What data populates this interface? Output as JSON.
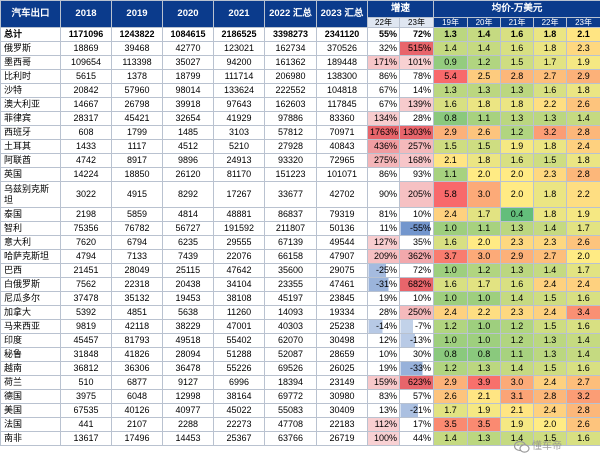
{
  "table": {
    "headers": {
      "country": "汽车出口",
      "y2018": "2018",
      "y2019": "2019",
      "y2020": "2020",
      "y2021": "2021",
      "ytd2022": "2022 汇总",
      "ytd2023": "2023 汇总",
      "growth": "增速",
      "avg_price": "均价-万美元"
    },
    "growth_subheaders": [
      "22年",
      "23年"
    ],
    "price_subheaders": [
      "19年",
      "20年",
      "21年",
      "22年",
      "23年"
    ],
    "rows": [
      {
        "country": "总计",
        "values": [
          "1171096",
          "1243822",
          "1084615",
          "2186525",
          "3398273",
          "2341120"
        ],
        "growth": [
          "55%",
          "72%"
        ],
        "price": [
          "1.3",
          "1.4",
          "1.6",
          "1.8",
          "2.1"
        ]
      },
      {
        "country": "俄罗斯",
        "values": [
          "18869",
          "39468",
          "42770",
          "123021",
          "162734",
          "370526"
        ],
        "growth": [
          "32%",
          "515%"
        ],
        "price": [
          "1.4",
          "1.4",
          "1.6",
          "1.8",
          "2.3"
        ]
      },
      {
        "country": "墨西哥",
        "values": [
          "109654",
          "113398",
          "35027",
          "94200",
          "161362",
          "189448"
        ],
        "growth": [
          "171%",
          "101%"
        ],
        "price": [
          "0.9",
          "1.2",
          "1.5",
          "1.7",
          "1.9"
        ]
      },
      {
        "country": "比利时",
        "values": [
          "5615",
          "1378",
          "18799",
          "111714",
          "206980",
          "138300"
        ],
        "growth": [
          "86%",
          "78%"
        ],
        "price": [
          "5.4",
          "2.5",
          "2.8",
          "2.7",
          "2.9"
        ]
      },
      {
        "country": "沙特",
        "values": [
          "20842",
          "57960",
          "98014",
          "133624",
          "222552",
          "104818"
        ],
        "growth": [
          "67%",
          "14%"
        ],
        "price": [
          "1.3",
          "1.3",
          "1.3",
          "1.6",
          "1.8"
        ]
      },
      {
        "country": "澳大利亚",
        "values": [
          "14667",
          "26798",
          "39918",
          "97643",
          "162603",
          "117845"
        ],
        "growth": [
          "67%",
          "139%"
        ],
        "price": [
          "1.6",
          "1.8",
          "1.8",
          "2.2",
          "2.6"
        ]
      },
      {
        "country": "菲律宾",
        "values": [
          "28317",
          "45421",
          "32654",
          "41929",
          "97886",
          "83360"
        ],
        "growth": [
          "134%",
          "28%"
        ],
        "price": [
          "0.8",
          "1.1",
          "1.3",
          "1.3",
          "1.4"
        ]
      },
      {
        "country": "西班牙",
        "values": [
          "608",
          "1799",
          "1485",
          "3103",
          "57812",
          "70971"
        ],
        "growth": [
          "1763%",
          "1303%"
        ],
        "price": [
          "2.9",
          "2.6",
          "1.2",
          "3.2",
          "2.8"
        ]
      },
      {
        "country": "土耳其",
        "values": [
          "1433",
          "1117",
          "4512",
          "5210",
          "27928",
          "40843"
        ],
        "growth": [
          "436%",
          "257%"
        ],
        "price": [
          "1.5",
          "1.5",
          "1.9",
          "1.8",
          "2.4"
        ]
      },
      {
        "country": "阿联酋",
        "values": [
          "4742",
          "8917",
          "9896",
          "24913",
          "93320",
          "72965"
        ],
        "growth": [
          "275%",
          "168%"
        ],
        "price": [
          "2.1",
          "1.8",
          "1.6",
          "1.5",
          "1.8"
        ]
      },
      {
        "country": "英国",
        "values": [
          "14224",
          "18850",
          "26120",
          "81170",
          "151223",
          "101071"
        ],
        "growth": [
          "86%",
          "93%"
        ],
        "price": [
          "1.1",
          "2.0",
          "2.0",
          "2.3",
          "2.8"
        ]
      },
      {
        "country": "乌兹别克斯坦",
        "values": [
          "3022",
          "4915",
          "8292",
          "17267",
          "33677",
          "42702"
        ],
        "growth": [
          "90%",
          "205%"
        ],
        "price": [
          "5.8",
          "3.0",
          "2.0",
          "1.8",
          "2.2"
        ],
        "tall": true
      },
      {
        "country": "泰国",
        "values": [
          "2198",
          "5859",
          "4814",
          "48881",
          "86837",
          "79319"
        ],
        "growth": [
          "81%",
          "10%"
        ],
        "price": [
          "2.4",
          "1.7",
          "0.4",
          "1.8",
          "1.9"
        ]
      },
      {
        "country": "智利",
        "values": [
          "75356",
          "76782",
          "56727",
          "191592",
          "211807",
          "50136"
        ],
        "growth": [
          "11%",
          "-55%"
        ],
        "price": [
          "1.0",
          "1.1",
          "1.3",
          "1.4",
          "1.7"
        ]
      },
      {
        "country": "意大利",
        "values": [
          "7620",
          "6794",
          "6235",
          "29555",
          "67139",
          "49544"
        ],
        "growth": [
          "127%",
          "35%"
        ],
        "price": [
          "1.6",
          "2.0",
          "2.3",
          "2.3",
          "2.6"
        ]
      },
      {
        "country": "哈萨克斯坦",
        "values": [
          "4794",
          "7133",
          "7439",
          "22076",
          "66158",
          "47907"
        ],
        "growth": [
          "209%",
          "362%"
        ],
        "price": [
          "3.7",
          "3.0",
          "2.9",
          "2.7",
          "2.0"
        ]
      },
      {
        "country": "巴西",
        "values": [
          "21451",
          "28049",
          "25115",
          "47642",
          "35600",
          "29075"
        ],
        "growth": [
          "-25%",
          "72%"
        ],
        "price": [
          "1.0",
          "1.2",
          "1.3",
          "1.4",
          "1.7"
        ]
      },
      {
        "country": "白俄罗斯",
        "values": [
          "7562",
          "22318",
          "20438",
          "34104",
          "23355",
          "47461"
        ],
        "growth": [
          "-31%",
          "682%"
        ],
        "price": [
          "1.6",
          "1.7",
          "1.6",
          "2.4",
          "2.4"
        ]
      },
      {
        "country": "尼瓜多尔",
        "values": [
          "37478",
          "35132",
          "19453",
          "38108",
          "45197",
          "23845"
        ],
        "growth": [
          "19%",
          "10%"
        ],
        "price": [
          "1.0",
          "1.0",
          "1.4",
          "1.5",
          "1.6"
        ]
      },
      {
        "country": "加拿大",
        "values": [
          "5392",
          "4851",
          "5638",
          "11260",
          "14093",
          "19334"
        ],
        "growth": [
          "28%",
          "250%"
        ],
        "price": [
          "2.4",
          "2.2",
          "2.3",
          "2.4",
          "3.4"
        ]
      },
      {
        "country": "马来西亚",
        "values": [
          "9819",
          "42118",
          "38229",
          "47001",
          "40303",
          "25238"
        ],
        "growth": [
          "-14%",
          "-7%"
        ],
        "price": [
          "1.2",
          "1.0",
          "1.2",
          "1.5",
          "1.6"
        ]
      },
      {
        "country": "印度",
        "values": [
          "45457",
          "81793",
          "49518",
          "55402",
          "62070",
          "30498"
        ],
        "growth": [
          "12%",
          "-13%"
        ],
        "price": [
          "1.0",
          "1.0",
          "1.2",
          "1.3",
          "1.4"
        ]
      },
      {
        "country": "秘鲁",
        "values": [
          "31848",
          "41826",
          "28094",
          "51288",
          "52087",
          "28659"
        ],
        "growth": [
          "10%",
          "30%"
        ],
        "price": [
          "0.8",
          "0.8",
          "1.1",
          "1.3",
          "1.4"
        ]
      },
      {
        "country": "越南",
        "values": [
          "36812",
          "36306",
          "36478",
          "55226",
          "69526",
          "26025"
        ],
        "growth": [
          "19%",
          "-33%"
        ],
        "price": [
          "1.2",
          "1.3",
          "1.4",
          "1.5",
          "1.6"
        ]
      },
      {
        "country": "荷兰",
        "values": [
          "510",
          "6877",
          "9127",
          "6996",
          "18394",
          "23149"
        ],
        "growth": [
          "159%",
          "623%"
        ],
        "price": [
          "2.9",
          "3.9",
          "3.0",
          "2.4",
          "2.7"
        ]
      },
      {
        "country": "德国",
        "values": [
          "3975",
          "6048",
          "12998",
          "38164",
          "69772",
          "30980"
        ],
        "growth": [
          "83%",
          "57%"
        ],
        "price": [
          "2.6",
          "2.1",
          "3.1",
          "2.8",
          "3.2"
        ]
      },
      {
        "country": "美国",
        "values": [
          "67535",
          "40126",
          "40977",
          "45022",
          "55083",
          "30409"
        ],
        "growth": [
          "13%",
          "-21%"
        ],
        "price": [
          "1.7",
          "1.9",
          "2.1",
          "2.4",
          "2.8"
        ]
      },
      {
        "country": "法国",
        "values": [
          "441",
          "2107",
          "2288",
          "22273",
          "47708",
          "22183"
        ],
        "growth": [
          "112%",
          "17%"
        ],
        "price": [
          "3.5",
          "3.5",
          "1.9",
          "2.0",
          "2.6"
        ]
      },
      {
        "country": "南非",
        "values": [
          "13617",
          "17496",
          "14453",
          "25367",
          "63766",
          "26719"
        ],
        "growth": [
          "100%",
          "44%"
        ],
        "price": [
          "1.4",
          "1.3",
          "1.4",
          "1.5",
          "1.6"
        ]
      }
    ]
  },
  "watermark": {
    "text": "懂车帝",
    "icon": "wechat-icon"
  },
  "colors": {
    "header_bg": "#0b3b8c",
    "header_text": "#ffffff",
    "grid_line": "#b9c2d0",
    "growth_red": "#e8656b",
    "growth_pink": "#f9cccd",
    "growth_blue": "#7396cd",
    "scale_low": "#63be7b",
    "scale_mid": "#ffeb84",
    "scale_high": "#f8696b"
  }
}
